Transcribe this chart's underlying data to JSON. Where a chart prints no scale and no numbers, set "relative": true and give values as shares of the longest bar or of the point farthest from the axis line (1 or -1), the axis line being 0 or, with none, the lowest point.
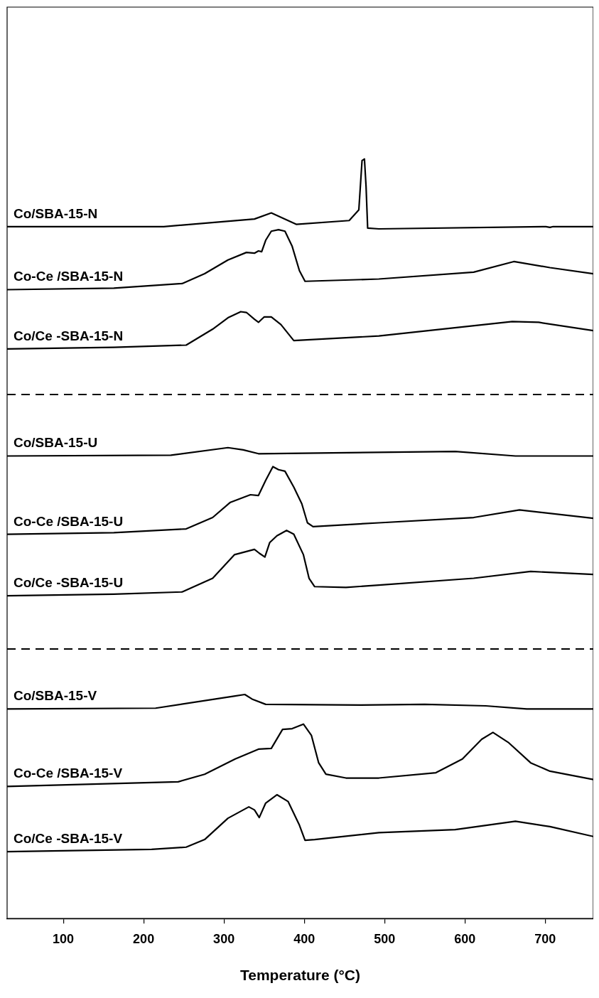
{
  "chart_data": {
    "type": "line",
    "relative": true,
    "xlabel": "Temperature (°C)",
    "xlim": [
      30,
      760
    ],
    "xticks": [
      100,
      200,
      300,
      400,
      500,
      600,
      700
    ],
    "grid": false,
    "legend": false,
    "marker": "none",
    "line_style": "solid",
    "series": [
      {
        "name": "Co/SBA-15-N",
        "color": "#000000",
        "x": [
          30,
          225,
          338,
          359,
          390,
          456,
          468,
          472,
          475,
          477,
          479,
          493,
          701,
          706,
          710,
          760
        ],
        "values": [
          0.911,
          0.911,
          0.921,
          0.929,
          0.914,
          0.919,
          0.933,
          0.998,
          1.0,
          0.964,
          0.909,
          0.908,
          0.911,
          0.91,
          0.911,
          0.911
        ]
      },
      {
        "name": "Co-Ce /SBA-15-N",
        "color": "#000000",
        "x": [
          30,
          163,
          248,
          276,
          305,
          328,
          338,
          343,
          347,
          352,
          359,
          368,
          376,
          385,
          394,
          401,
          493,
          611,
          661,
          706,
          760
        ],
        "values": [
          0.828,
          0.83,
          0.836,
          0.849,
          0.867,
          0.877,
          0.876,
          0.879,
          0.878,
          0.893,
          0.905,
          0.907,
          0.905,
          0.885,
          0.853,
          0.839,
          0.842,
          0.851,
          0.865,
          0.857,
          0.849
        ]
      },
      {
        "name": "Co/Ce -SBA-15-N",
        "color": "#000000",
        "x": [
          30,
          163,
          253,
          286,
          305,
          321,
          328,
          338,
          343,
          350,
          359,
          371,
          387,
          493,
          659,
          692,
          760
        ],
        "values": [
          0.75,
          0.752,
          0.755,
          0.776,
          0.791,
          0.799,
          0.798,
          0.789,
          0.785,
          0.792,
          0.792,
          0.782,
          0.761,
          0.767,
          0.786,
          0.785,
          0.774
        ]
      },
      {
        "name": "Co/SBA-15-U",
        "color": "#000000",
        "x": [
          30,
          234,
          305,
          324,
          343,
          588,
          663,
          760
        ],
        "values": [
          0.609,
          0.61,
          0.62,
          0.617,
          0.612,
          0.615,
          0.609,
          0.609
        ]
      },
      {
        "name": "Co-Ce /SBA-15-U",
        "color": "#000000",
        "x": [
          30,
          163,
          253,
          286,
          308,
          333,
          343,
          352,
          361,
          368,
          376,
          387,
          397,
          404,
          411,
          493,
          611,
          668,
          760
        ],
        "values": [
          0.506,
          0.508,
          0.513,
          0.528,
          0.548,
          0.558,
          0.557,
          0.577,
          0.595,
          0.591,
          0.589,
          0.568,
          0.546,
          0.521,
          0.516,
          0.521,
          0.528,
          0.538,
          0.527
        ]
      },
      {
        "name": "Co/Ce -SBA-15-U",
        "color": "#000000",
        "x": [
          30,
          163,
          248,
          286,
          313,
          338,
          344,
          351,
          357,
          366,
          378,
          387,
          399,
          406,
          413,
          452,
          493,
          611,
          682,
          760
        ],
        "values": [
          0.425,
          0.427,
          0.43,
          0.448,
          0.479,
          0.486,
          0.481,
          0.476,
          0.495,
          0.504,
          0.511,
          0.506,
          0.479,
          0.448,
          0.437,
          0.436,
          0.439,
          0.448,
          0.457,
          0.453
        ]
      },
      {
        "name": "Co/SBA-15-V",
        "color": "#000000",
        "x": [
          30,
          215,
          314,
          326,
          335,
          352,
          470,
          550,
          626,
          677,
          760
        ],
        "values": [
          0.276,
          0.277,
          0.293,
          0.295,
          0.289,
          0.282,
          0.281,
          0.282,
          0.28,
          0.276,
          0.276
        ]
      },
      {
        "name": "Co-Ce /SBA-15-V",
        "color": "#000000",
        "x": [
          30,
          243,
          276,
          314,
          343,
          359,
          373,
          385,
          399,
          409,
          418,
          427,
          452,
          493,
          564,
          597,
          621,
          635,
          654,
          682,
          706,
          760
        ],
        "values": [
          0.174,
          0.18,
          0.19,
          0.21,
          0.223,
          0.224,
          0.249,
          0.25,
          0.256,
          0.241,
          0.205,
          0.19,
          0.185,
          0.185,
          0.192,
          0.21,
          0.236,
          0.245,
          0.232,
          0.205,
          0.194,
          0.183
        ]
      },
      {
        "name": "Co/Ce -SBA-15-V",
        "color": "#000000",
        "x": [
          30,
          210,
          253,
          276,
          305,
          331,
          338,
          344,
          352,
          366,
          380,
          394,
          401,
          413,
          493,
          588,
          663,
          706,
          760
        ],
        "values": [
          0.088,
          0.091,
          0.094,
          0.104,
          0.132,
          0.147,
          0.143,
          0.133,
          0.152,
          0.163,
          0.154,
          0.123,
          0.103,
          0.104,
          0.113,
          0.117,
          0.128,
          0.121,
          0.108
        ]
      }
    ],
    "ref_lines": [
      {
        "axis": "y",
        "value": 0.69,
        "color": "#000000",
        "line_style": "dashed"
      },
      {
        "axis": "y",
        "value": 0.355,
        "color": "#000000",
        "line_style": "dashed"
      }
    ]
  }
}
